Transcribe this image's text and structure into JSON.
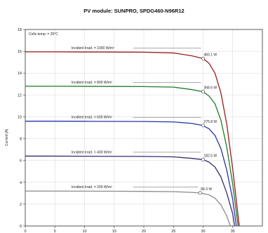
{
  "chart_data": {
    "type": "line",
    "title": "PV module:  SUNPRO,  SPDG460-N96R12",
    "note": "Cells temp. = 25°C",
    "xlabel": "",
    "ylabel": "Current [A]",
    "xlim": [
      0,
      40
    ],
    "ylim": [
      0,
      18
    ],
    "xticks": [
      "0",
      "5",
      "10",
      "15",
      "20",
      "25",
      "30",
      "35"
    ],
    "yticks": [
      "0",
      "2",
      "4",
      "6",
      "8",
      "10",
      "12",
      "14",
      "16",
      "18"
    ],
    "grid": true,
    "series": [
      {
        "name": "Incident Irrad. = 1000 W/m²",
        "color": "#9b1b1b",
        "isc": 15.95,
        "voc": 36.1,
        "mpp_v": 30.0,
        "mpp_label": "460.1 W",
        "x": [
          0,
          5,
          10,
          15,
          20,
          25,
          28,
          30,
          31,
          32,
          33,
          34,
          35,
          36.1
        ],
        "y": [
          15.95,
          15.95,
          15.94,
          15.93,
          15.92,
          15.85,
          15.6,
          15.34,
          14.9,
          14.0,
          12.2,
          9.3,
          5.2,
          0
        ]
      },
      {
        "name": "Incident Irrad. = 800 W/m²",
        "color": "#1f7a2a",
        "isc": 12.8,
        "voc": 35.9,
        "mpp_v": 30.0,
        "mpp_label": "368.6 W",
        "x": [
          0,
          5,
          10,
          15,
          20,
          25,
          28,
          30,
          31,
          32,
          33,
          34,
          35,
          35.9
        ],
        "y": [
          12.8,
          12.8,
          12.79,
          12.78,
          12.77,
          12.72,
          12.5,
          12.3,
          11.9,
          11.2,
          9.7,
          7.2,
          3.8,
          0
        ]
      },
      {
        "name": "Incident Irrad. = 600 W/m²",
        "color": "#2832a8",
        "isc": 9.6,
        "voc": 35.6,
        "mpp_v": 30.0,
        "mpp_label": "275.8 W",
        "x": [
          0,
          5,
          10,
          15,
          20,
          25,
          28,
          30,
          31,
          32,
          33,
          34,
          35,
          35.6
        ],
        "y": [
          9.6,
          9.6,
          9.59,
          9.58,
          9.57,
          9.53,
          9.4,
          9.2,
          8.9,
          8.3,
          7.1,
          5.1,
          2.4,
          0
        ]
      },
      {
        "name": "Incident Irrad. = 400 W/m²",
        "color": "#3a2a6e",
        "isc": 6.4,
        "voc": 35.3,
        "mpp_v": 30.0,
        "mpp_label": "182.5 W",
        "x": [
          0,
          5,
          10,
          15,
          20,
          25,
          28,
          30,
          31,
          32,
          33,
          34,
          35,
          35.3
        ],
        "y": [
          6.4,
          6.4,
          6.39,
          6.38,
          6.37,
          6.33,
          6.2,
          6.08,
          5.85,
          5.4,
          4.5,
          3.0,
          1.1,
          0
        ]
      },
      {
        "name": "Incident Irrad. = 200 W/m²",
        "color": "#8a8a8a",
        "isc": 3.2,
        "voc": 34.6,
        "mpp_v": 29.5,
        "mpp_label": "89.3 W",
        "x": [
          0,
          5,
          10,
          15,
          20,
          25,
          28,
          29.5,
          31,
          32,
          33,
          34,
          34.6
        ],
        "y": [
          3.2,
          3.2,
          3.19,
          3.18,
          3.17,
          3.14,
          3.08,
          3.03,
          2.85,
          2.55,
          1.95,
          0.9,
          0
        ]
      }
    ]
  }
}
